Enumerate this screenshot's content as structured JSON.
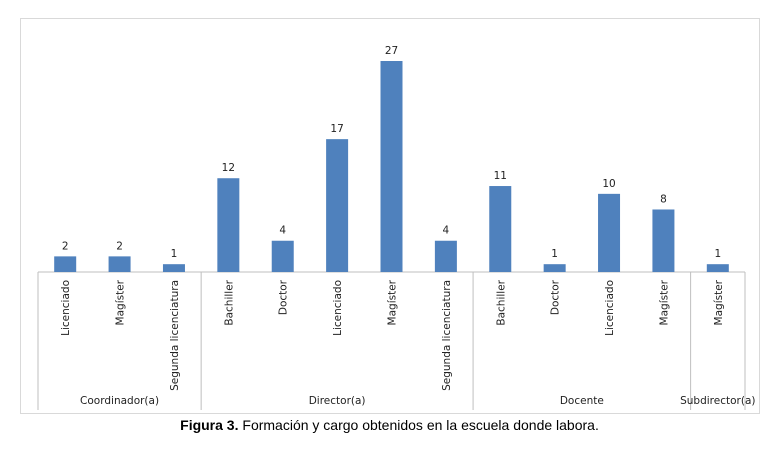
{
  "caption": {
    "label": "Figura 3.",
    "text": "Formación y cargo obtenidos en la escuela donde labora."
  },
  "colors": {
    "bar": "#4f81bd",
    "axis": "#bfbfbf"
  },
  "chart_data": {
    "type": "bar",
    "title": "",
    "xlabel": "",
    "ylabel": "",
    "ylim": [
      0,
      27
    ],
    "grid": false,
    "legend": "none",
    "groups": [
      {
        "name": "Coordinador(a)",
        "categories": [
          "Licenciado",
          "Magíster",
          "Segunda licenciatura"
        ],
        "values": [
          2,
          2,
          1
        ]
      },
      {
        "name": "Director(a)",
        "categories": [
          "Bachiller",
          "Doctor",
          "Licenciado",
          "Magíster",
          "Segunda licenciatura"
        ],
        "values": [
          12,
          4,
          17,
          27,
          4
        ]
      },
      {
        "name": "Docente",
        "categories": [
          "Bachiller",
          "Doctor",
          "Licenciado",
          "Magíster"
        ],
        "values": [
          11,
          1,
          10,
          8
        ]
      },
      {
        "name": "Subdirector(a)",
        "categories": [
          "Magíster"
        ],
        "values": [
          1
        ]
      }
    ]
  }
}
